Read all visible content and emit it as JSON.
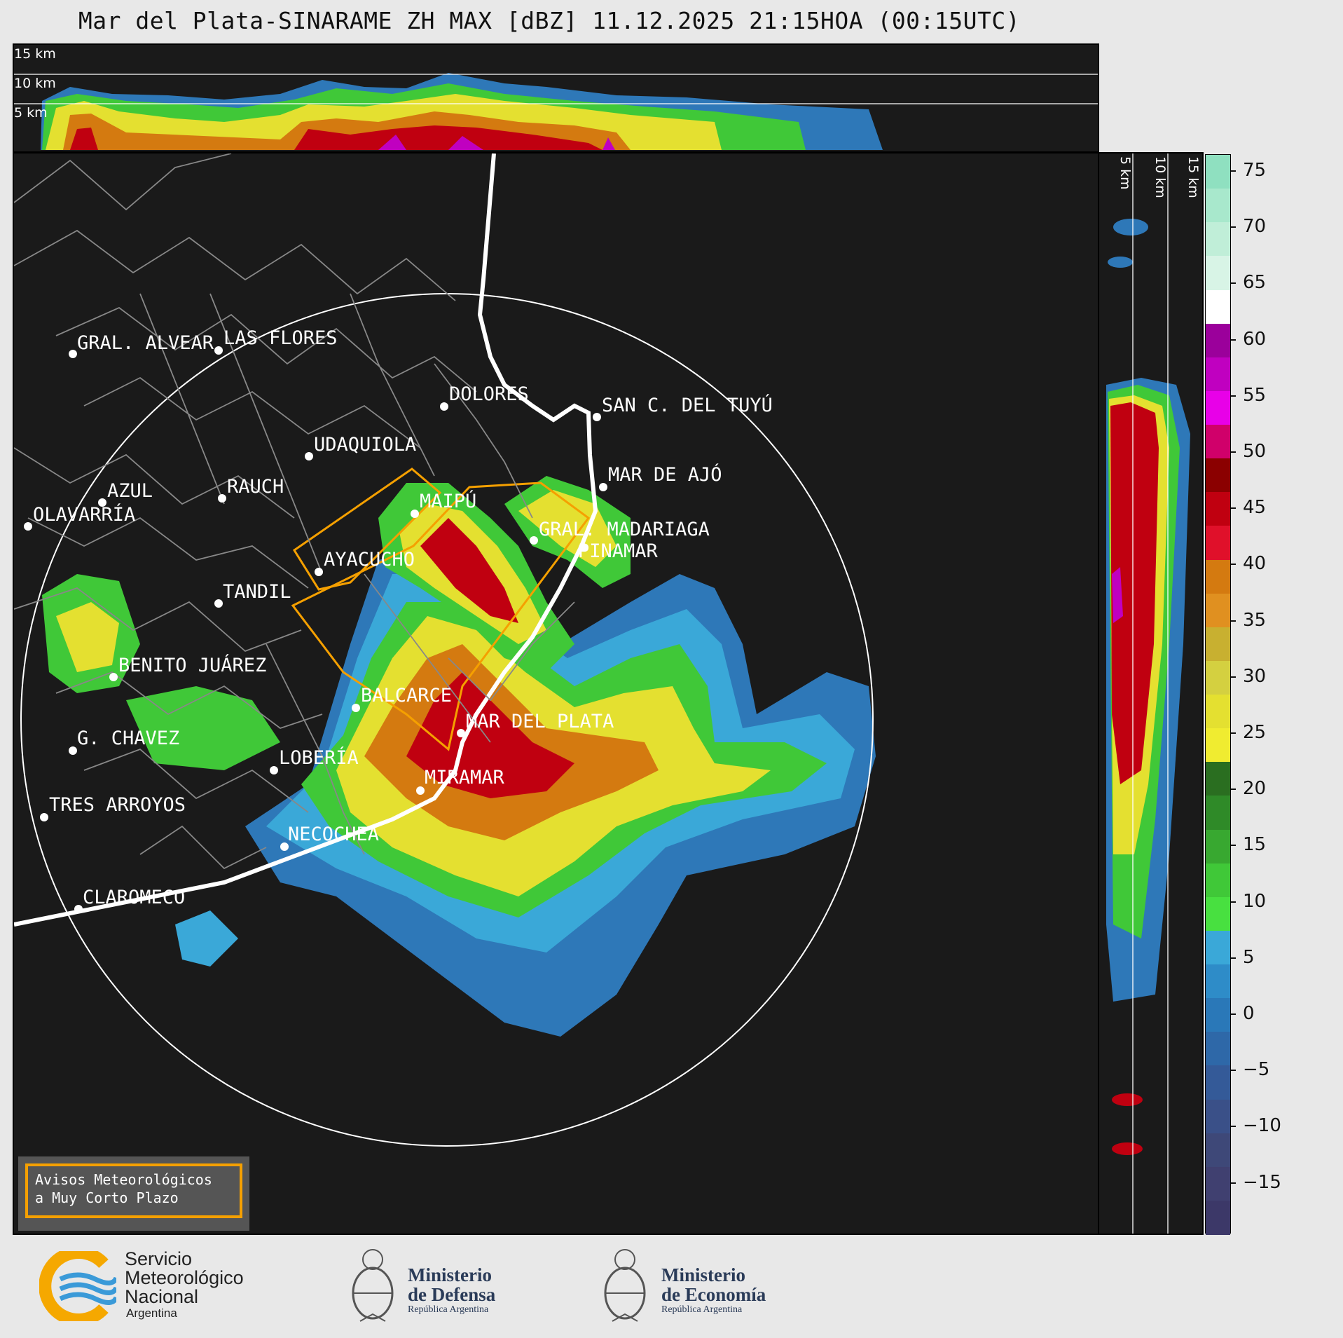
{
  "title": "Mar del Plata-SINARAME ZH MAX [dBZ] 11.12.2025 21:15HOA (00:15UTC)",
  "top_strip_labels": [
    "15 km",
    "10 km",
    "5 km"
  ],
  "side_strip_labels": [
    "5 km",
    "10 km",
    "15 km"
  ],
  "colorbar": {
    "ticks": [
      "75",
      "70",
      "65",
      "60",
      "55",
      "50",
      "45",
      "40",
      "35",
      "30",
      "25",
      "20",
      "15",
      "10",
      "5",
      "0",
      "−5",
      "−10",
      "−15"
    ],
    "colors": [
      "#8fe0c0",
      "#a8e8cc",
      "#c0eed8",
      "#d8f4e6",
      "#ffffff",
      "#9b009b",
      "#c000c0",
      "#e800e8",
      "#d0006a",
      "#8b0000",
      "#c00010",
      "#e0102a",
      "#d47a10",
      "#e09020",
      "#c8b030",
      "#d4d040",
      "#e4e030",
      "#f0ec30",
      "#2a6e20",
      "#2f8a28",
      "#38a830",
      "#40c838",
      "#48e040",
      "#3aa8d8",
      "#2e8cc8",
      "#2a78b8",
      "#2e68a8",
      "#345a98",
      "#3a5088",
      "#3e4878",
      "#404070",
      "#3c3868"
    ]
  },
  "cities": [
    {
      "name": "GRAL. ALVEAR"
    },
    {
      "name": "LAS FLORES"
    },
    {
      "name": "DOLORES"
    },
    {
      "name": "SAN C. DEL TUYÚ"
    },
    {
      "name": "UDAQUIOLA"
    },
    {
      "name": "MAR DE AJÓ"
    },
    {
      "name": "AZUL"
    },
    {
      "name": "RAUCH"
    },
    {
      "name": "OLAVARRÍA"
    },
    {
      "name": "MAIPÚ"
    },
    {
      "name": "GRAL. MADARIAGA"
    },
    {
      "name": "PINAMAR"
    },
    {
      "name": "AYACUCHO"
    },
    {
      "name": "TANDIL"
    },
    {
      "name": "BENITO JUÁREZ"
    },
    {
      "name": "BALCARCE"
    },
    {
      "name": "MAR DEL PLATA"
    },
    {
      "name": "G. CHAVEZ"
    },
    {
      "name": "LOBERÍA"
    },
    {
      "name": "MIRAMAR"
    },
    {
      "name": "TRES ARROYOS"
    },
    {
      "name": "NECOCHEA"
    },
    {
      "name": "CLAROMECO"
    }
  ],
  "legend": {
    "line1": "Avisos Meteorológicos",
    "line2": "a Muy Corto Plazo"
  },
  "footer": {
    "smn": {
      "line1": "Servicio",
      "line2": "Meteorológico",
      "line3": "Nacional",
      "line4": "Argentina"
    },
    "defensa": {
      "line1": "Ministerio",
      "line2": "de Defensa",
      "line3": "República Argentina"
    },
    "economia": {
      "line1": "Ministerio",
      "line2": "de Economía",
      "line3": "República Argentina"
    }
  }
}
